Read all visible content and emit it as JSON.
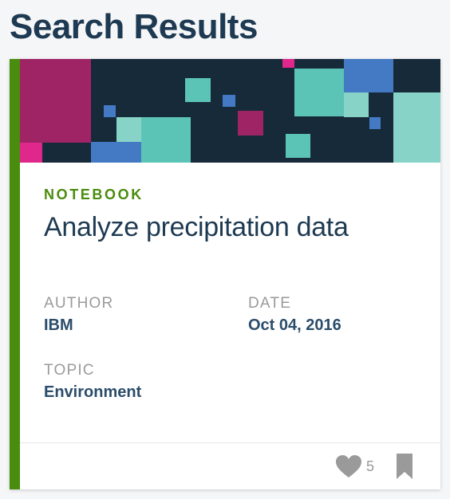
{
  "page": {
    "title": "Search Results"
  },
  "card": {
    "type_label": "NOTEBOOK",
    "title": "Analyze precipitation data",
    "author_label": "AUTHOR",
    "author": "IBM",
    "date_label": "DATE",
    "date": "Oct 04, 2016",
    "topic_label": "TOPIC",
    "topic": "Environment",
    "likes": "5",
    "icons": {
      "like": "heart-icon",
      "save": "bookmark-icon"
    }
  },
  "colors": {
    "accent": "#4a8c0e",
    "title_text": "#1e3a52",
    "value_text": "#2b4d6b",
    "banner_bg": "#172a3a",
    "teal": "#5cc4b6",
    "blue": "#4479c4",
    "magenta": "#9e2466",
    "pink": "#e0288c"
  }
}
